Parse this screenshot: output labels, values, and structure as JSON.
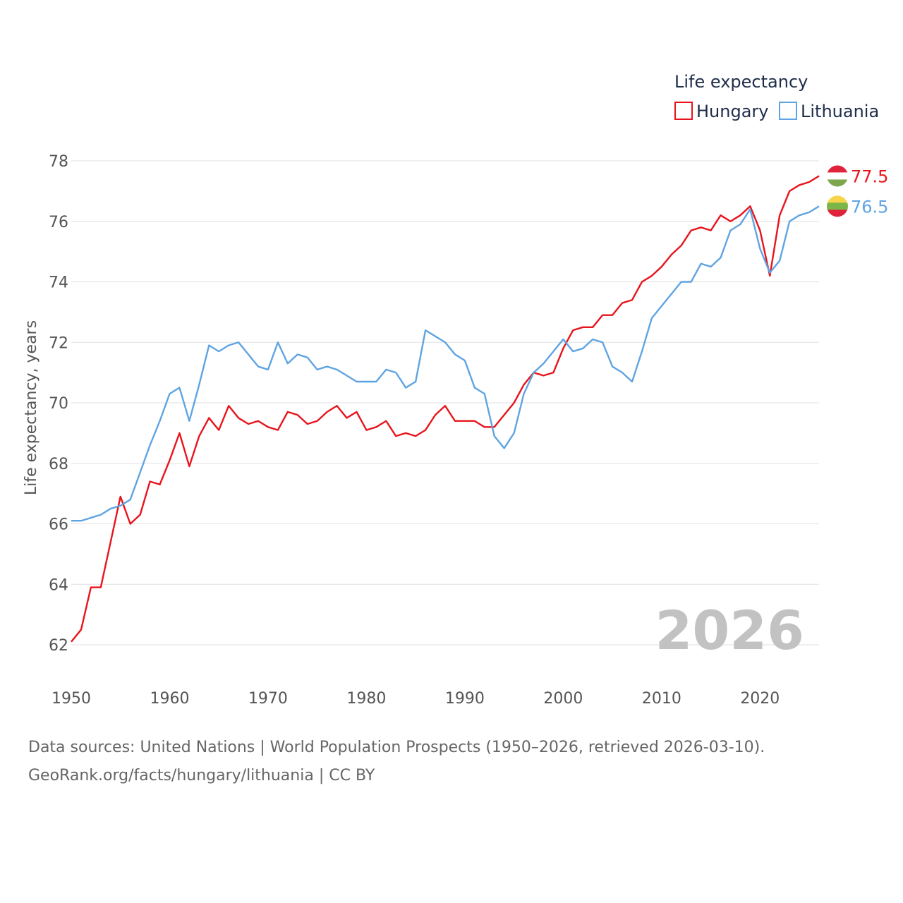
{
  "chart_data": {
    "type": "line",
    "title": "",
    "xlabel": "",
    "ylabel": "Life expectancy, years",
    "xlim": [
      1950,
      2026
    ],
    "ylim": [
      62,
      78
    ],
    "yticks": [
      62,
      64,
      66,
      68,
      70,
      72,
      74,
      76,
      78
    ],
    "xticks": [
      1950,
      1960,
      1970,
      1980,
      1990,
      2000,
      2010,
      2020
    ],
    "legend_title": "Life expectancy",
    "legend_position": "top-right",
    "year_watermark": "2026",
    "x": [
      1950,
      1951,
      1952,
      1953,
      1954,
      1955,
      1956,
      1957,
      1958,
      1959,
      1960,
      1961,
      1962,
      1963,
      1964,
      1965,
      1966,
      1967,
      1968,
      1969,
      1970,
      1971,
      1972,
      1973,
      1974,
      1975,
      1976,
      1977,
      1978,
      1979,
      1980,
      1981,
      1982,
      1983,
      1984,
      1985,
      1986,
      1987,
      1988,
      1989,
      1990,
      1991,
      1992,
      1993,
      1994,
      1995,
      1996,
      1997,
      1998,
      1999,
      2000,
      2001,
      2002,
      2003,
      2004,
      2005,
      2006,
      2007,
      2008,
      2009,
      2010,
      2011,
      2012,
      2013,
      2014,
      2015,
      2016,
      2017,
      2018,
      2019,
      2020,
      2021,
      2022,
      2023,
      2024,
      2025,
      2026
    ],
    "series": [
      {
        "name": "Hungary",
        "color": "#e8141c",
        "end_label": "77.5",
        "flag": "hungary-flag-icon",
        "values": [
          62.1,
          62.5,
          63.9,
          63.9,
          65.4,
          66.9,
          66.0,
          66.3,
          67.4,
          67.3,
          68.1,
          69.0,
          67.9,
          68.9,
          69.5,
          69.1,
          69.9,
          69.5,
          69.3,
          69.4,
          69.2,
          69.1,
          69.7,
          69.6,
          69.3,
          69.4,
          69.7,
          69.9,
          69.5,
          69.7,
          69.1,
          69.2,
          69.4,
          68.9,
          69.0,
          68.9,
          69.1,
          69.6,
          69.9,
          69.4,
          69.4,
          69.4,
          69.2,
          69.2,
          69.6,
          70.0,
          70.6,
          71.0,
          70.9,
          71.0,
          71.8,
          72.4,
          72.5,
          72.5,
          72.9,
          72.9,
          73.3,
          73.4,
          74.0,
          74.2,
          74.5,
          74.9,
          75.2,
          75.7,
          75.8,
          75.7,
          76.2,
          76.0,
          76.2,
          76.5,
          75.7,
          74.2,
          76.2,
          77.0,
          77.2,
          77.3,
          77.5
        ]
      },
      {
        "name": "Lithuania",
        "color": "#5fa4e2",
        "end_label": "76.5",
        "flag": "lithuania-flag-icon",
        "values": [
          66.1,
          66.1,
          66.2,
          66.3,
          66.5,
          66.6,
          66.8,
          67.7,
          68.6,
          69.4,
          70.3,
          70.5,
          69.4,
          70.6,
          71.9,
          71.7,
          71.9,
          72.0,
          71.6,
          71.2,
          71.1,
          72.0,
          71.3,
          71.6,
          71.5,
          71.1,
          71.2,
          71.1,
          70.9,
          70.7,
          70.7,
          70.7,
          71.1,
          71.0,
          70.5,
          70.7,
          72.4,
          72.2,
          72.0,
          71.6,
          71.4,
          70.5,
          70.3,
          68.9,
          68.5,
          69.0,
          70.3,
          71.0,
          71.3,
          71.7,
          72.1,
          71.7,
          71.8,
          72.1,
          72.0,
          71.2,
          71.0,
          70.7,
          71.7,
          72.8,
          73.2,
          73.6,
          74.0,
          74.0,
          74.6,
          74.5,
          74.8,
          75.7,
          75.9,
          76.4,
          75.1,
          74.3,
          74.7,
          76.0,
          76.2,
          76.3,
          76.5
        ]
      }
    ]
  },
  "footer": {
    "line1": "Data sources: United Nations | World Population Prospects (1950–2026, retrieved 2026-03-10).",
    "line2": "GeoRank.org/facts/hungary/lithuania | CC BY"
  }
}
